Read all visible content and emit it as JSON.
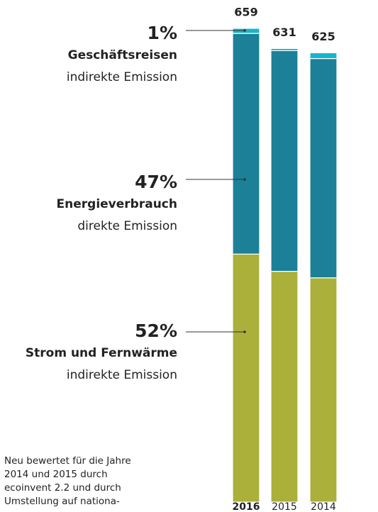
{
  "chart_data": {
    "type": "stacked_bar",
    "categories": [
      "2016",
      "2015",
      "2014"
    ],
    "totals": [
      659,
      631,
      625
    ],
    "series": [
      {
        "name": "Strom und Fernwärme",
        "color": "#aab03a",
        "values": [
          345,
          321,
          312
        ],
        "share": {
          "value": 52,
          "label": "52%"
        },
        "note": "indirekte Emission"
      },
      {
        "name": "Energieverbrauch",
        "color": "#1b8098",
        "values": [
          307,
          307,
          305
        ],
        "share": {
          "value": 47,
          "label": "47%"
        },
        "note": "direkte Emission"
      },
      {
        "name": "Geschäftsreisen",
        "color": "#17b5c8",
        "values": [
          7,
          3,
          8
        ],
        "share": {
          "value": 1,
          "label": "1%"
        },
        "note": "indirekte Emission"
      }
    ],
    "footnote": [
      "Neu bewertet für die Jahre",
      "2014 und 2015 durch",
      "ecoinvent 2.2 und durch",
      "Umstellung auf nationa-"
    ]
  }
}
